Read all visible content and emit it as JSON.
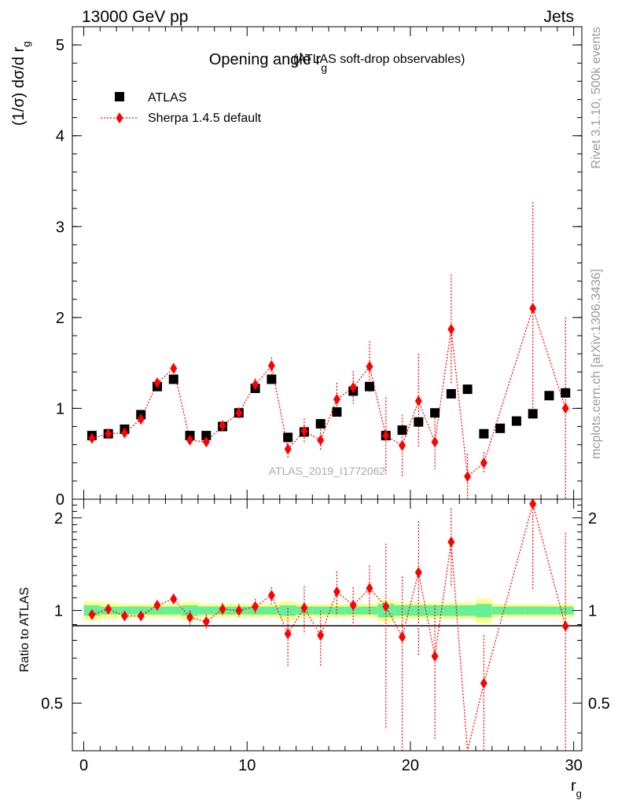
{
  "header": {
    "left_label": "13000 GeV pp",
    "right_label": "Jets"
  },
  "side_labels": {
    "rivet": "Rivet 3.1.10,  500k events",
    "mcplots": "mcplots.cern.ch [arXiv:1306.3436]"
  },
  "watermark": "ATLAS_2019_I1772062",
  "colors": {
    "data": "#000000",
    "mc": "#ff0000",
    "band_inner": "#66ee99",
    "band_outer": "#ffff88"
  },
  "chart_data": [
    {
      "type": "scatter",
      "panel": "main",
      "title": "Opening angle r",
      "title_sub": "g",
      "title_suffix": "(ATLAS soft-drop observables)",
      "ylabel": "(1/σ) dσ/d r",
      "ylabel_sub": "g",
      "ylim": [
        0,
        5.2
      ],
      "yticks": [
        0,
        1,
        2,
        3,
        4,
        5
      ],
      "ytick_labels": [
        "0",
        "1",
        "2",
        "3",
        "4",
        "5"
      ],
      "xlim": [
        -0.7,
        30.5
      ],
      "legend_position": "top-left",
      "series": [
        {
          "name": "ATLAS",
          "marker": "square",
          "x": [
            0.5,
            1.5,
            2.5,
            3.5,
            4.5,
            5.5,
            6.5,
            7.5,
            8.5,
            9.5,
            10.5,
            11.5,
            12.5,
            13.5,
            14.5,
            15.5,
            16.5,
            17.5,
            18.5,
            19.5,
            20.5,
            21.5,
            22.5,
            23.5,
            24.5,
            25.5,
            26.5,
            27.5,
            28.5,
            29.5
          ],
          "y": [
            0.7,
            0.72,
            0.77,
            0.93,
            1.24,
            1.32,
            0.7,
            0.7,
            0.8,
            0.95,
            1.22,
            1.32,
            0.68,
            0.74,
            0.83,
            0.96,
            1.19,
            1.24,
            0.7,
            0.76,
            0.85,
            0.95,
            1.16,
            1.21,
            0.72,
            0.78,
            0.86,
            0.94,
            1.14,
            1.17
          ]
        },
        {
          "name": "Sherpa 1.4.5 default",
          "marker": "diamond",
          "line": "dotted",
          "x": [
            0.5,
            1.5,
            2.5,
            3.5,
            4.5,
            5.5,
            6.5,
            7.5,
            8.5,
            9.5,
            10.5,
            11.5,
            12.5,
            13.5,
            14.5,
            15.5,
            16.5,
            17.5,
            18.5,
            19.5,
            20.5,
            21.5,
            22.5,
            23.5,
            24.5,
            27.5,
            29.5
          ],
          "y": [
            0.67,
            0.72,
            0.73,
            0.88,
            1.28,
            1.44,
            0.65,
            0.63,
            0.81,
            0.95,
            1.26,
            1.47,
            0.55,
            0.75,
            0.65,
            1.1,
            1.23,
            1.46,
            0.7,
            0.59,
            1.08,
            0.63,
            1.87,
            0.25,
            0.4,
            2.1,
            1.0
          ],
          "err": [
            0.03,
            0.03,
            0.03,
            0.04,
            0.05,
            0.05,
            0.05,
            0.05,
            0.05,
            0.06,
            0.07,
            0.09,
            0.1,
            0.14,
            0.12,
            0.18,
            0.18,
            0.28,
            0.42,
            0.34,
            0.52,
            0.3,
            0.6,
            0.25,
            0.12,
            1.17,
            1.0
          ]
        }
      ]
    },
    {
      "type": "scatter",
      "panel": "ratio",
      "ylabel": "Ratio to ATLAS",
      "ylim": [
        0.35,
        2.3
      ],
      "yticks": [
        0.5,
        1,
        2
      ],
      "ytick_labels": [
        "0.5",
        "1",
        "2"
      ],
      "xlabel": "r",
      "xlabel_sub": "g",
      "xlim": [
        -0.7,
        30.5
      ],
      "xticks": [
        0,
        10,
        20,
        30
      ],
      "xtick_labels": [
        "0",
        "10",
        "20",
        "30"
      ],
      "band": {
        "x": [
          0.5,
          1.5,
          2.5,
          3.5,
          4.5,
          5.5,
          6.5,
          7.5,
          8.5,
          9.5,
          10.5,
          11.5,
          12.5,
          13.5,
          14.5,
          15.5,
          16.5,
          17.5,
          18.5,
          19.5,
          20.5,
          21.5,
          22.5,
          23.5,
          24.5,
          25.5,
          26.5,
          27.5,
          28.5,
          29.5
        ],
        "inner": [
          0.04,
          0.03,
          0.03,
          0.03,
          0.03,
          0.03,
          0.04,
          0.03,
          0.03,
          0.03,
          0.03,
          0.03,
          0.04,
          0.03,
          0.03,
          0.03,
          0.03,
          0.03,
          0.05,
          0.04,
          0.04,
          0.04,
          0.04,
          0.04,
          0.05,
          0.03,
          0.03,
          0.03,
          0.03,
          0.03
        ],
        "outer": [
          0.07,
          0.06,
          0.05,
          0.05,
          0.05,
          0.05,
          0.07,
          0.05,
          0.05,
          0.05,
          0.05,
          0.05,
          0.07,
          0.05,
          0.05,
          0.05,
          0.05,
          0.05,
          0.08,
          0.06,
          0.06,
          0.06,
          0.06,
          0.06,
          0.09,
          0.05,
          0.05,
          0.05,
          0.05,
          0.05
        ]
      },
      "series": [
        {
          "name": "Sherpa 1.4.5 default",
          "x": [
            0.5,
            1.5,
            2.5,
            3.5,
            4.5,
            5.5,
            6.5,
            7.5,
            8.5,
            9.5,
            10.5,
            11.5,
            12.5,
            13.5,
            14.5,
            15.5,
            16.5,
            17.5,
            18.5,
            19.5,
            20.5,
            21.5,
            22.5,
            24.5,
            27.5,
            29.5
          ],
          "y": [
            0.97,
            1.01,
            0.96,
            0.96,
            1.04,
            1.09,
            0.95,
            0.92,
            1.01,
            1.0,
            1.03,
            1.12,
            0.84,
            1.02,
            0.83,
            1.15,
            1.04,
            1.18,
            1.03,
            0.82,
            1.33,
            0.71,
            1.67,
            0.58,
            2.22,
            0.89
          ],
          "err": [
            0.03,
            0.03,
            0.03,
            0.03,
            0.04,
            0.04,
            0.05,
            0.05,
            0.05,
            0.05,
            0.06,
            0.07,
            0.18,
            0.18,
            0.17,
            0.19,
            0.15,
            0.22,
            0.62,
            0.47,
            0.62,
            0.33,
            0.48,
            0.25,
            1.06,
            0.9
          ]
        }
      ]
    }
  ]
}
